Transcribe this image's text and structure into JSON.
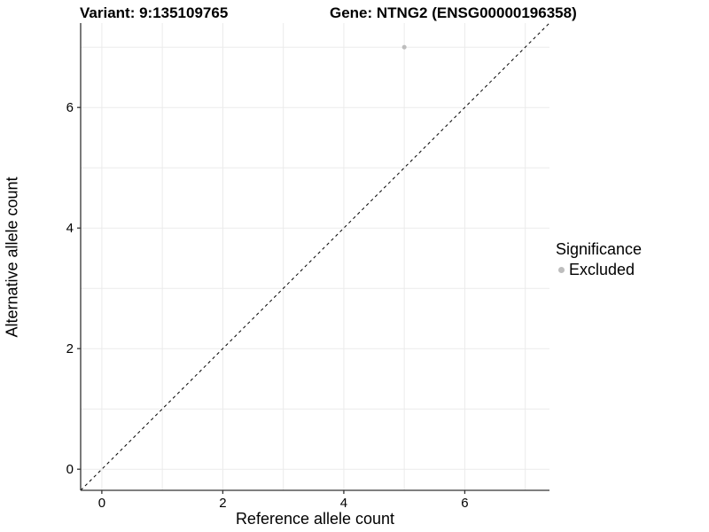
{
  "titles": {
    "variant": "Variant: 9:135109765",
    "gene": "Gene: NTNG2 (ENSG00000196358)"
  },
  "chart_data": {
    "type": "scatter",
    "xlabel": "Reference allele count",
    "ylabel": "Alternative allele count",
    "xlim": [
      -0.35,
      7.4
    ],
    "ylim": [
      -0.35,
      7.4
    ],
    "xticks": [
      0,
      2,
      4,
      6
    ],
    "yticks": [
      0,
      2,
      4,
      6
    ],
    "gridline_step": 1,
    "grid_on": true,
    "series": [
      {
        "name": "Excluded",
        "color": "#bdbdbd",
        "points": [
          {
            "x": 5,
            "y": 7
          }
        ]
      }
    ],
    "identity_line": {
      "type": "abline",
      "slope": 1,
      "intercept": 0,
      "style": "dashed",
      "color": "#000000"
    },
    "legend": {
      "title": "Significance",
      "position": "right",
      "items": [
        {
          "label": "Excluded",
          "color": "#bdbdbd"
        }
      ]
    }
  },
  "colors": {
    "gridline": "#ebebeb",
    "axis_line": "#333333",
    "tick_mark": "#333333",
    "tick_label": "#000000",
    "point": "#bdbdbd",
    "background": "#ffffff"
  }
}
